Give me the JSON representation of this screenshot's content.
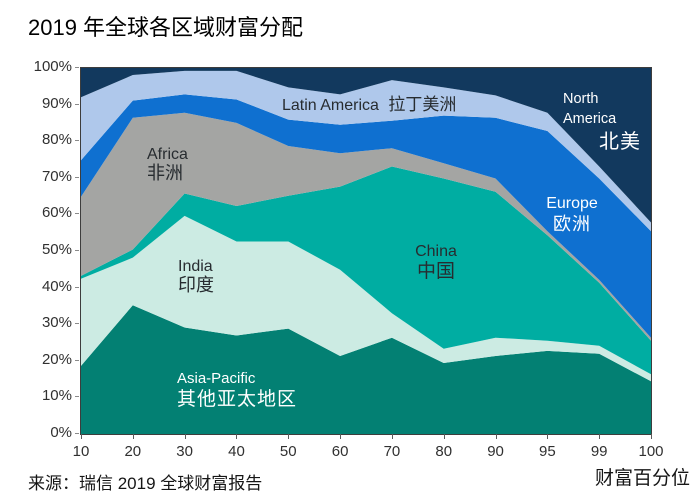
{
  "title": "2019 年全球各区域财富分配",
  "source": "来源：瑞信 2019 全球财富报告",
  "x_axis_title": "财富百分位",
  "chart_data": {
    "type": "area",
    "stacked": true,
    "grid": false,
    "legend": "labels-on-chart",
    "x_label": "财富百分位",
    "categories": [
      "10",
      "20",
      "30",
      "40",
      "50",
      "60",
      "70",
      "80",
      "90",
      "95",
      "99",
      "100"
    ],
    "y_ticks": [
      "0%",
      "10%",
      "20%",
      "30%",
      "40%",
      "50%",
      "60%",
      "70%",
      "80%",
      "90%",
      "100%"
    ],
    "ylim": [
      0,
      100
    ],
    "series": [
      {
        "name": "Asia-Pacific",
        "name_zh": "其他亚太地区",
        "color": "#038073",
        "label_color": "#ffffff",
        "values": [
          18.6,
          35.2,
          29.1,
          26.9,
          28.8,
          21.3,
          26.3,
          19.4,
          21.3,
          22.7,
          21.9,
          14.4
        ]
      },
      {
        "name": "India",
        "name_zh": "印度",
        "color": "#CCEBE3",
        "label_color": "#272c30",
        "values": [
          23.8,
          13.0,
          30.5,
          25.7,
          23.8,
          23.6,
          6.7,
          3.9,
          5.0,
          2.8,
          2.2,
          1.9
        ]
      },
      {
        "name": "China",
        "name_zh": "中国",
        "color": "#00ADA2",
        "label_color": "#272c30",
        "values": [
          0.8,
          2.2,
          6.1,
          9.7,
          12.5,
          22.7,
          40.1,
          46.5,
          39.9,
          28.8,
          17.2,
          9.2
        ]
      },
      {
        "name": "Africa",
        "name_zh": "非洲",
        "color": "#A4A5A3",
        "label_color": "#272c30",
        "values": [
          21.6,
          36.0,
          22.1,
          22.7,
          13.6,
          9.1,
          5.0,
          4.2,
          3.6,
          1.1,
          0.8,
          0.8
        ]
      },
      {
        "name": "Europe",
        "name_zh": "欧洲",
        "color": "#0F70D0",
        "label_color": "#ffffff",
        "values": [
          10.0,
          4.7,
          5.0,
          6.4,
          7.2,
          7.8,
          7.5,
          13.0,
          16.6,
          27.4,
          27.7,
          29.1
        ]
      },
      {
        "name": "Latin America",
        "name_zh": "拉丁美洲",
        "color": "#AFC8EB",
        "label_color": "#272c30",
        "values": [
          17.2,
          7.0,
          6.4,
          7.8,
          8.8,
          8.3,
          11.1,
          7.7,
          6.1,
          5.0,
          3.3,
          2.4
        ]
      },
      {
        "name": "North America",
        "name_zh": "北美",
        "color": "#12395E",
        "label_color": "#ffffff",
        "values": [
          8.0,
          1.9,
          0.8,
          0.8,
          5.3,
          7.2,
          3.3,
          5.3,
          7.5,
          12.2,
          26.9,
          42.2
        ]
      }
    ]
  }
}
